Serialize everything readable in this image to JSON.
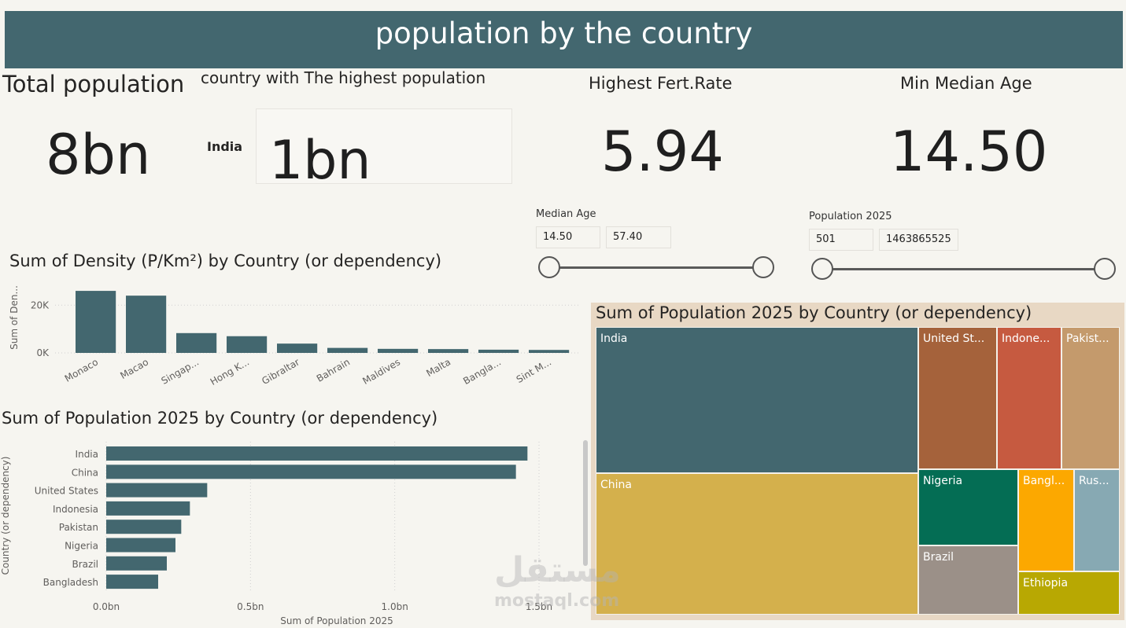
{
  "header": {
    "title": "population by the country"
  },
  "kpis": {
    "total_population": {
      "title": "Total population",
      "value": "8bn"
    },
    "highest_country": {
      "title": "country with The highest population",
      "country": "India",
      "value": "1bn"
    },
    "highest_fert_rate": {
      "title": "Highest Fert.Rate",
      "value": "5.94"
    },
    "min_median_age": {
      "title": "Min Median Age",
      "value": "14.50"
    }
  },
  "slicers": {
    "median_age": {
      "label": "Median Age",
      "min": "14.50",
      "max": "57.40"
    },
    "population_2025": {
      "label": "Population 2025",
      "min": "501",
      "max": "1463865525"
    }
  },
  "watermark": {
    "line1": "مستقل",
    "line2": "mostaql.com"
  },
  "chart_data": [
    {
      "type": "bar",
      "title": "Sum of Density (P/Km²) by Country (or dependency)",
      "ylabel": "Sum of Den...",
      "xlabel": "",
      "categories": [
        "Monaco",
        "Macao",
        "Singap...",
        "Hong K...",
        "Gibraltar",
        "Bahrain",
        "Maldives",
        "Malta",
        "Bangla...",
        "Sint M..."
      ],
      "values": [
        26000,
        24000,
        8300,
        7000,
        3900,
        2100,
        1700,
        1600,
        1350,
        1250
      ],
      "yticks": [
        "0K",
        "20K"
      ],
      "ylim": [
        0,
        28000
      ],
      "grid": true,
      "colors": {
        "bar": "#43676f"
      }
    },
    {
      "type": "bar",
      "orientation": "horizontal",
      "title": "Sum of Population 2025 by Country (or dependency)",
      "xlabel": "Sum of Population 2025",
      "ylabel": "Country (or dependency)",
      "categories": [
        "India",
        "China",
        "United States",
        "Indonesia",
        "Pakistan",
        "Nigeria",
        "Brazil",
        "Bangladesh"
      ],
      "values": [
        1.46,
        1.42,
        0.35,
        0.29,
        0.26,
        0.24,
        0.21,
        0.18
      ],
      "xticks": [
        "0.0bn",
        "0.5bn",
        "1.0bn",
        "1.5bn"
      ],
      "xlim": [
        0,
        1.5
      ],
      "grid": true,
      "colors": {
        "bar": "#43676f"
      }
    },
    {
      "type": "treemap",
      "title": "Sum of Population 2025 by Country (or dependency)",
      "tiles": [
        {
          "label": "India",
          "color": "#43676f"
        },
        {
          "label": "China",
          "color": "#d4b04c"
        },
        {
          "label": "United St...",
          "color": "#a5623b"
        },
        {
          "label": "Indone...",
          "color": "#c65a40"
        },
        {
          "label": "Pakist...",
          "color": "#c49a6c"
        },
        {
          "label": "Nigeria",
          "color": "#046d54"
        },
        {
          "label": "Brazil",
          "color": "#9b9088"
        },
        {
          "label": "Bangl...",
          "color": "#fca800"
        },
        {
          "label": "Rus...",
          "color": "#87a9b3"
        },
        {
          "label": "Ethiopia",
          "color": "#b8a802"
        }
      ]
    }
  ]
}
